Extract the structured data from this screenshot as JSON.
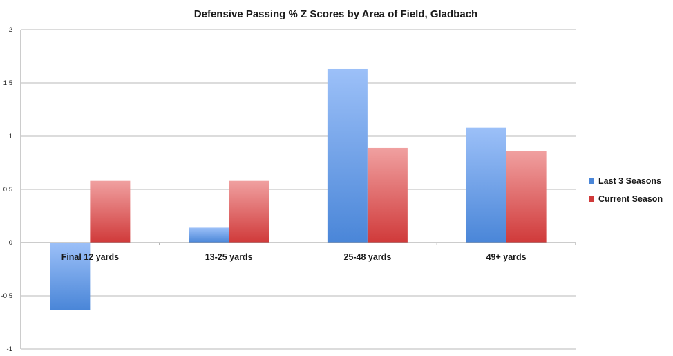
{
  "chart_data": {
    "type": "bar",
    "title": "Defensive Passing % Z Scores by Area of Field, Gladbach",
    "xlabel": "",
    "ylabel": "",
    "categories": [
      "Final 12 yards",
      "13-25 yards",
      "25-48 yards",
      "49+ yards"
    ],
    "series": [
      {
        "name": "Last 3 Seasons",
        "values": [
          -0.63,
          0.14,
          1.63,
          1.08
        ],
        "color": "#4a86d8",
        "color_light": "#9cc0f8"
      },
      {
        "name": "Current Season",
        "values": [
          0.58,
          0.58,
          0.89,
          0.86
        ],
        "color": "#d03a3a",
        "color_light": "#f0a0a0"
      }
    ],
    "ylim": [
      -1,
      2
    ],
    "yticks": [
      {
        "value": 2,
        "label": "2"
      },
      {
        "value": 1.5,
        "label": "1.5"
      },
      {
        "value": 1,
        "label": "1"
      },
      {
        "value": 0.5,
        "label": "0.5"
      },
      {
        "value": 0,
        "label": "0"
      },
      {
        "value": -0.5,
        "label": "-0.5"
      },
      {
        "value": -1,
        "label": "-1"
      }
    ],
    "grid": true,
    "legend_position": "right",
    "gridline_color": "#b8b8b8"
  }
}
